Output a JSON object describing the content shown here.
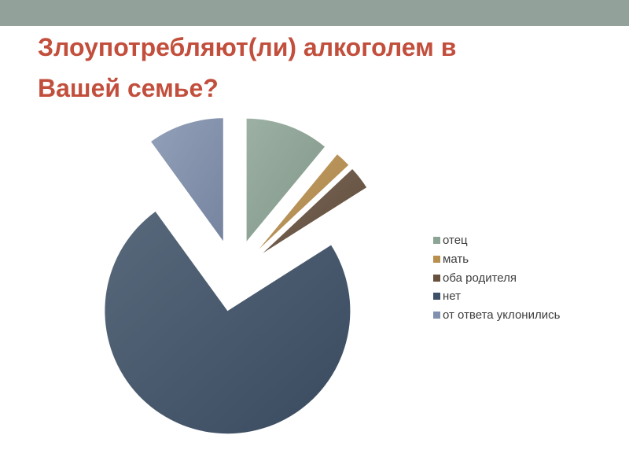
{
  "slide": {
    "title": "Злоупотребляют(ли) алкоголем в Вашей семье?",
    "title_lines": [
      "Злоупотребляют(ли) алкоголем в",
      "Вашей семье?"
    ],
    "title_color": "#C24E3C",
    "accent_bar_color": "#92A29A",
    "background_color": "#FFFFFF"
  },
  "chart_data": {
    "type": "pie",
    "title": "Злоупотребляют(ли) алкоголем в Вашей семье?",
    "labels": [
      "отец",
      "мать",
      "оба родителя",
      "нет",
      "от ответа уклонились"
    ],
    "values": [
      11,
      2,
      3,
      74,
      10
    ],
    "unit": "percent (estimated from slice angles, no data labels shown)",
    "colors": [
      "#8CA495",
      "#B98F4E",
      "#67503E",
      "#3E5067",
      "#8090AE"
    ],
    "start_angle_deg": 0,
    "direction": "clockwise",
    "exploded": true,
    "legend_position": "right",
    "legend_text_color": "#3D3D3D",
    "grid": false
  }
}
